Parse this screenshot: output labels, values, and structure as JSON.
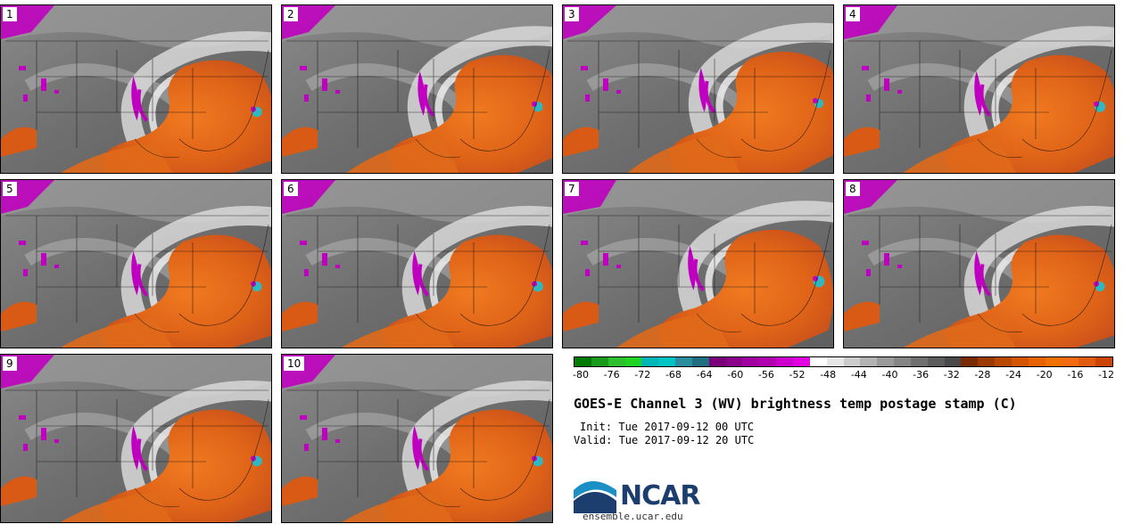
{
  "stamps": [
    {
      "label": "1",
      "swirl": [
        0.7,
        0.55
      ],
      "mag": 0.6
    },
    {
      "label": "2",
      "swirl": [
        0.72,
        0.52
      ],
      "mag": 0.5
    },
    {
      "label": "3",
      "swirl": [
        0.72,
        0.5
      ],
      "mag": 0.4
    },
    {
      "label": "4",
      "swirl": [
        0.7,
        0.52
      ],
      "mag": 0.7
    },
    {
      "label": "5",
      "swirl": [
        0.7,
        0.55
      ],
      "mag": 0.5
    },
    {
      "label": "6",
      "swirl": [
        0.7,
        0.55
      ],
      "mag": 0.6
    },
    {
      "label": "7",
      "swirl": [
        0.68,
        0.52
      ],
      "mag": 0.8
    },
    {
      "label": "8",
      "swirl": [
        0.7,
        0.55
      ],
      "mag": 0.5
    },
    {
      "label": "9",
      "swirl": [
        0.7,
        0.55
      ],
      "mag": 0.6
    },
    {
      "label": "10",
      "swirl": [
        0.7,
        0.55
      ],
      "mag": 0.6
    }
  ],
  "colorbar": {
    "ticks": [
      "-80",
      "-76",
      "-72",
      "-68",
      "-64",
      "-60",
      "-56",
      "-52",
      "-48",
      "-44",
      "-40",
      "-36",
      "-32",
      "-28",
      "-24",
      "-20",
      "-16",
      "-12"
    ],
    "colors": [
      "#007a00",
      "#1a9a1a",
      "#2dbf2d",
      "#22d422",
      "#00b6b6",
      "#00c4c4",
      "#2a8c9c",
      "#1f6f80",
      "#7a007a",
      "#8a008a",
      "#a000a0",
      "#b000b0",
      "#cc00cc",
      "#e000e0",
      "#ffffff",
      "#e6e6e6",
      "#cccccc",
      "#b3b3b3",
      "#9a9a9a",
      "#858585",
      "#707070",
      "#5c5c5c",
      "#494949",
      "#7a2a00",
      "#9a3a00",
      "#b84800",
      "#d45500",
      "#e86200",
      "#f07000",
      "#f56a10",
      "#e05a10",
      "#cc4400"
    ]
  },
  "title": "GOES-E Channel 3 (WV) brightness temp postage stamp (C)",
  "init": "Init: Tue 2017-09-12 00 UTC",
  "valid": "Valid: Tue 2017-09-12 20 UTC",
  "logo": {
    "text": "NCAR",
    "site": "ensemble.ucar.edu"
  }
}
